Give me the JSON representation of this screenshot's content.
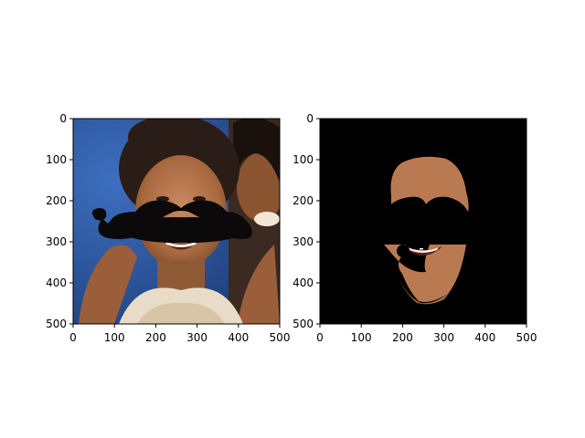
{
  "chart_data": [
    {
      "type": "image",
      "title": "",
      "xlabel": "",
      "ylabel": "",
      "xlim": [
        0,
        500
      ],
      "ylim": [
        500,
        0
      ],
      "x_ticks": [
        0,
        100,
        200,
        300,
        400,
        500
      ],
      "y_ticks": [
        0,
        100,
        200,
        300,
        400,
        500
      ],
      "image_content": "photo-of-face-with-mustache-overlay",
      "background": "photo",
      "colors": {
        "backdrop": "#2e5aa3",
        "hair": "#2a1c16",
        "skin": "#b0744e",
        "mustache": "#0b0909",
        "shirt": "#e8dcc8"
      }
    },
    {
      "type": "image",
      "title": "",
      "xlabel": "",
      "ylabel": "",
      "xlim": [
        0,
        500
      ],
      "ylim": [
        500,
        0
      ],
      "x_ticks": [
        0,
        100,
        200,
        300,
        400,
        500
      ],
      "y_ticks": [
        0,
        100,
        200,
        300,
        400,
        500
      ],
      "image_content": "segmented-face-skin-mask-on-black",
      "background": "black",
      "colors": {
        "backdrop": "#000000",
        "skin": "#b97a52",
        "mustache": "#000000"
      }
    }
  ]
}
